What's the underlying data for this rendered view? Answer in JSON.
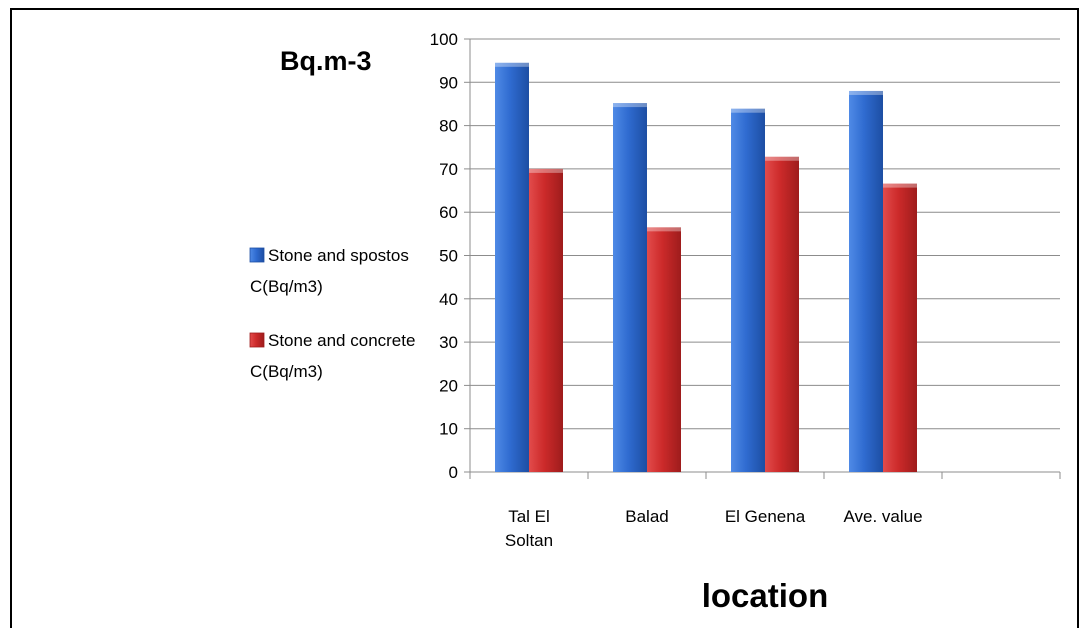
{
  "chart_data": {
    "type": "bar",
    "title": "",
    "xlabel": "location",
    "ylabel": "Bq.m-3",
    "categories": [
      [
        "Tal El",
        "Soltan"
      ],
      [
        "Balad"
      ],
      [
        "El Genena"
      ],
      [
        "Ave. value"
      ]
    ],
    "series": [
      {
        "name": [
          "Stone and spostos",
          "C(Bq/m3)"
        ],
        "color": "#2f6bd0",
        "values": [
          94.5,
          85.2,
          83.9,
          88
        ]
      },
      {
        "name": [
          "Stone and concrete",
          "C(Bq/m3)"
        ],
        "color": "#cc2a2a",
        "values": [
          70,
          56.5,
          72.8,
          66.6
        ]
      }
    ],
    "ylim": [
      0,
      100
    ],
    "yticks": [
      0,
      10,
      20,
      30,
      40,
      50,
      60,
      70,
      80,
      90,
      100
    ],
    "grid": true,
    "legend_position": "left"
  }
}
